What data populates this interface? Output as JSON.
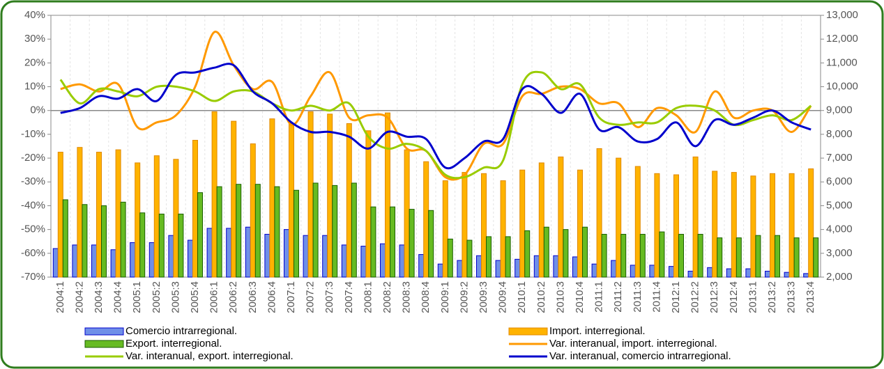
{
  "chart_data": {
    "type": "bar",
    "categories": [
      "2004:1",
      "2004:2",
      "2004:3",
      "2004:4",
      "2005:1",
      "2005:2",
      "2005:3",
      "2005:4",
      "2006:1",
      "2006:2",
      "2006:3",
      "2006:4",
      "2007:1",
      "2007:2",
      "2007:3",
      "2007:4",
      "2008:1",
      "2008:2",
      "2008:3",
      "2008:4",
      "2009:1",
      "2009:2",
      "2009:3",
      "2009:4",
      "2010:1",
      "2010:2",
      "2010:3",
      "2010:4",
      "2011:1",
      "2011:2",
      "2011:3",
      "2011:4",
      "2012:1",
      "2012:2",
      "2012:3",
      "2012:4",
      "2013:1",
      "2013:2",
      "2013:3",
      "2013:4"
    ],
    "series": [
      {
        "name": "Comercio intrarregional.",
        "type": "bar",
        "axis": "y2",
        "color": "#6f8fe8",
        "values": [
          3200,
          3350,
          3350,
          3150,
          3450,
          3450,
          3750,
          3550,
          4050,
          4050,
          4100,
          3800,
          4000,
          3750,
          3750,
          3350,
          3300,
          3400,
          3350,
          2950,
          2550,
          2700,
          2900,
          2700,
          2750,
          2900,
          2900,
          2850,
          2550,
          2700,
          2500,
          2500,
          2450,
          2250,
          2400,
          2350,
          2350,
          2250,
          2200,
          2150
        ]
      },
      {
        "name": "Import. interregional.",
        "type": "bar",
        "axis": "y2",
        "color": "#ffb300",
        "values": [
          7250,
          7450,
          7250,
          7350,
          6800,
          7100,
          6950,
          7750,
          8950,
          8550,
          7600,
          8650,
          8450,
          8950,
          8850,
          8450,
          8150,
          8900,
          7350,
          6850,
          6050,
          6400,
          6350,
          6050,
          6500,
          6800,
          7050,
          6500,
          7400,
          7000,
          6650,
          6350,
          6300,
          7050,
          6450,
          6400,
          6250,
          6350,
          6350,
          6550
        ]
      },
      {
        "name": "Export. interregional.",
        "type": "bar",
        "axis": "y2",
        "color": "#66bb22",
        "values": [
          5250,
          5050,
          5000,
          5150,
          4700,
          4650,
          4650,
          5550,
          5800,
          5900,
          5900,
          5800,
          5650,
          5950,
          5850,
          5950,
          4950,
          4950,
          4850,
          4800,
          3600,
          3550,
          3700,
          3700,
          3950,
          4100,
          4000,
          4100,
          3800,
          3800,
          3800,
          3900,
          3800,
          3800,
          3650,
          3650,
          3750,
          3750,
          3650,
          3650
        ]
      },
      {
        "name": "Var. interanual, import. interregional.",
        "type": "line",
        "axis": "y",
        "color": "#ff9900",
        "values": [
          9,
          11,
          8,
          11,
          -7,
          -5,
          -2,
          10,
          33,
          19,
          9,
          12,
          -6,
          6,
          16,
          -3,
          -2,
          -3,
          -16,
          -17,
          -28,
          -27,
          -14,
          -14,
          6,
          7,
          10,
          9,
          3,
          3,
          -7,
          1,
          -2,
          -9,
          8,
          -3,
          0,
          0,
          -9,
          2
        ]
      },
      {
        "name": "Var. interanual, export. interregional.",
        "type": "line",
        "axis": "y",
        "color": "#99cc00",
        "values": [
          13,
          3,
          9,
          8,
          6,
          10,
          10,
          8,
          4,
          8,
          8,
          3,
          0,
          2,
          0,
          3,
          -11,
          -16,
          -14,
          -17,
          -27,
          -28,
          -24,
          -21,
          11,
          16,
          9,
          11,
          -3,
          -6,
          -5,
          -5,
          1,
          2,
          0,
          -6,
          -4,
          -2,
          -4,
          2
        ]
      },
      {
        "name": "Var. interanual, comercio intrarregional.",
        "type": "line",
        "axis": "y",
        "color": "#0000cc",
        "values": [
          -1,
          1,
          6,
          5,
          9,
          4,
          15,
          16,
          18,
          19,
          8,
          3,
          -5,
          -9,
          -9,
          -11,
          -16,
          -9,
          -11,
          -12,
          -24,
          -20,
          -13,
          -12,
          9,
          7,
          -1,
          7,
          -8,
          -7,
          -13,
          -12,
          -5,
          -15,
          -4,
          -6,
          -3,
          0,
          -5,
          -8
        ]
      }
    ],
    "ylim": [
      -70,
      40
    ],
    "yticks": [
      {
        "value": -70,
        "label": "-70%"
      },
      {
        "value": -60,
        "label": "-60%"
      },
      {
        "value": -50,
        "label": "-50%"
      },
      {
        "value": -40,
        "label": "-40%"
      },
      {
        "value": -30,
        "label": "-30%"
      },
      {
        "value": -20,
        "label": "-20%"
      },
      {
        "value": -10,
        "label": "-10%"
      },
      {
        "value": 0,
        "label": "0%"
      },
      {
        "value": 10,
        "label": "10%"
      },
      {
        "value": 20,
        "label": "20%"
      },
      {
        "value": 30,
        "label": "30%"
      },
      {
        "value": 40,
        "label": "40%"
      }
    ],
    "y2lim": [
      2000,
      13000
    ],
    "y2ticks": [
      {
        "value": 2000,
        "label": "2,000"
      },
      {
        "value": 3000,
        "label": "3,000"
      },
      {
        "value": 4000,
        "label": "4,000"
      },
      {
        "value": 5000,
        "label": "5,000"
      },
      {
        "value": 6000,
        "label": "6,000"
      },
      {
        "value": 7000,
        "label": "7,000"
      },
      {
        "value": 8000,
        "label": "8,000"
      },
      {
        "value": 9000,
        "label": "9,000"
      },
      {
        "value": 10000,
        "label": "10,000"
      },
      {
        "value": 11000,
        "label": "11,000"
      },
      {
        "value": 12000,
        "label": "12,000"
      },
      {
        "value": 13000,
        "label": "13,000"
      }
    ]
  }
}
